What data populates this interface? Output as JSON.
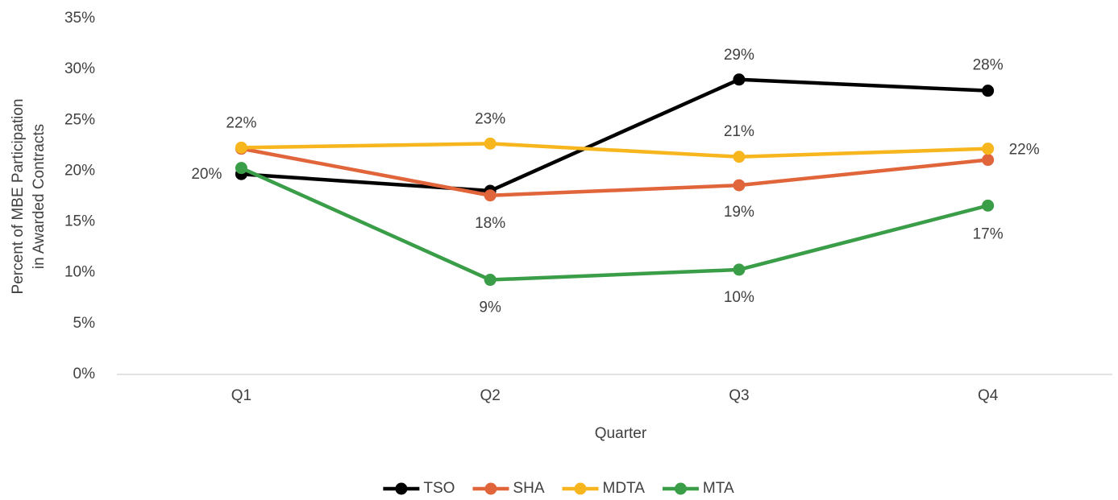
{
  "chart_data": {
    "type": "line",
    "categories": [
      "Q1",
      "Q2",
      "Q3",
      "Q4"
    ],
    "x_label": "Quarter",
    "y_label": [
      "Percent of MBE Participation",
      "in Awarded Contracts"
    ],
    "ylim": [
      0,
      35
    ],
    "yticks": [
      {
        "value": 0,
        "label": "0%"
      },
      {
        "value": 5,
        "label": "5%"
      },
      {
        "value": 10,
        "label": "10%"
      },
      {
        "value": 15,
        "label": "15%"
      },
      {
        "value": 20,
        "label": "20%"
      },
      {
        "value": 25,
        "label": "25%"
      },
      {
        "value": 30,
        "label": "30%"
      },
      {
        "value": 35,
        "label": "35%"
      }
    ],
    "grid": false,
    "legend": "bottom",
    "series": [
      {
        "name": "TSO",
        "color": "#000000",
        "values": [
          19.7,
          18.05,
          29.0,
          27.9
        ],
        "value_labels": [
          "20%",
          null,
          "29%",
          "28%"
        ]
      },
      {
        "name": "SHA",
        "color": "#e1653a",
        "values": [
          22.2,
          17.6,
          18.6,
          21.1
        ],
        "value_labels": [
          null,
          "18%",
          "19%",
          null
        ]
      },
      {
        "name": "MDTA",
        "color": "#f7b51e",
        "values": [
          22.3,
          22.7,
          21.4,
          22.2
        ],
        "value_labels": [
          "22%",
          "23%",
          "21%",
          "22%"
        ]
      },
      {
        "name": "MTA",
        "color": "#3a9d47",
        "values": [
          20.3,
          9.3,
          10.3,
          16.6
        ],
        "value_labels": [
          null,
          "9%",
          "10%",
          "17%"
        ]
      }
    ]
  }
}
